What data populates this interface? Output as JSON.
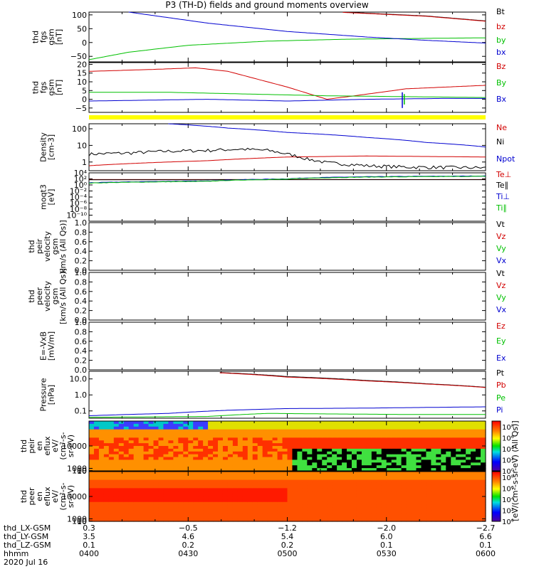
{
  "title": "P3 (TH-D) fields and ground moments overview",
  "colors": {
    "black": "#000000",
    "red": "#d20000",
    "green": "#00c000",
    "blue": "#0000d0",
    "yellow": "#ffff00"
  },
  "chart_data": [
    {
      "type": "line",
      "id": "fgs",
      "ylabel": [
        "thd",
        "fgs",
        "gsm",
        "[nT]"
      ],
      "ylim": [
        -70,
        110
      ],
      "yticks": [
        {
          "v": 100,
          "t": "100"
        },
        {
          "v": 50,
          "t": "50"
        },
        {
          "v": 0,
          "t": "0"
        },
        {
          "v": -50,
          "t": "−50"
        }
      ],
      "series": [
        {
          "name": "Bt",
          "color": "black",
          "x": [
            0.64,
            0.85,
            1.0
          ],
          "y": [
            110,
            96,
            78
          ]
        },
        {
          "name": "bz",
          "color": "red",
          "x": [
            0.64,
            0.85,
            1.0
          ],
          "y": [
            109,
            95,
            77
          ]
        },
        {
          "name": "by",
          "color": "green",
          "x": [
            0,
            0.1,
            0.25,
            0.45,
            0.65,
            0.85,
            1.0
          ],
          "y": [
            -62,
            -35,
            -10,
            5,
            12,
            15,
            17
          ]
        },
        {
          "name": "bx",
          "color": "blue",
          "x": [
            0.1,
            0.3,
            0.5,
            0.7,
            0.85,
            1.0
          ],
          "y": [
            110,
            70,
            40,
            20,
            8,
            -2
          ]
        }
      ]
    },
    {
      "type": "line",
      "id": "fgs_dsl",
      "ylabel": [
        "thd",
        "fgs",
        "gsm",
        "[nT]"
      ],
      "ylim": [
        -7.5,
        21
      ],
      "yticks": [
        {
          "v": 20,
          "t": "20"
        },
        {
          "v": 15,
          "t": "15"
        },
        {
          "v": 10,
          "t": "10"
        },
        {
          "v": 5,
          "t": "5"
        },
        {
          "v": 0,
          "t": "0"
        },
        {
          "v": -5,
          "t": "−5"
        }
      ],
      "series": [
        {
          "name": "Bz",
          "color": "red",
          "x": [
            0,
            0.15,
            0.27,
            0.35,
            0.5,
            0.6,
            0.67,
            0.8,
            1.0
          ],
          "y": [
            16,
            17,
            18,
            16,
            7,
            0,
            2,
            6,
            8
          ]
        },
        {
          "name": "By",
          "color": "green",
          "x": [
            0,
            0.2,
            0.4,
            0.6,
            0.8,
            1.0
          ],
          "y": [
            4,
            4,
            3,
            2,
            1.5,
            1
          ]
        },
        {
          "name": "Bx",
          "color": "blue",
          "x": [
            0,
            0.3,
            0.5,
            0.7,
            0.9,
            1.0
          ],
          "y": [
            -1,
            0,
            -1,
            0,
            0.5,
            0.5
          ]
        }
      ],
      "spikes": [
        {
          "x": 0.79,
          "y0": -5,
          "y1": 4,
          "color": "blue"
        },
        {
          "x": 0.795,
          "y0": -3,
          "y1": 3,
          "color": "green"
        }
      ],
      "flag_color": "yellow"
    },
    {
      "type": "line",
      "id": "density",
      "log": true,
      "ylabel": [
        "Density",
        "[cm-3]"
      ],
      "ylim": [
        0.3,
        200
      ],
      "yticks": [
        {
          "v": 100,
          "t": "100"
        },
        {
          "v": 10,
          "t": "10"
        },
        {
          "v": 1,
          "t": "1"
        }
      ],
      "series": [
        {
          "name": "Ne",
          "color": "red",
          "x": [
            0,
            0.15,
            0.3,
            0.5,
            0.7,
            1.0
          ],
          "y": [
            0.6,
            0.9,
            1.2,
            2.0,
            2.3,
            2.0
          ]
        },
        {
          "name": "Ni",
          "color": "black",
          "x": [
            0,
            0.1,
            0.2,
            0.3,
            0.38,
            0.45,
            0.5,
            0.55,
            0.6,
            0.7,
            0.8,
            1.0
          ],
          "y": [
            3,
            3.5,
            4.5,
            5,
            6,
            5,
            3,
            1.5,
            0.9,
            0.6,
            0.5,
            0.45
          ]
        },
        {
          "name": "Npot",
          "color": "blue",
          "x": [
            0.2,
            0.35,
            0.5,
            0.7,
            0.85,
            1.0
          ],
          "y": [
            200,
            110,
            60,
            30,
            15,
            8
          ]
        }
      ]
    },
    {
      "type": "line",
      "id": "moqt3",
      "log": true,
      "ylabel": [
        "moqt3",
        "[eV]"
      ],
      "ylim": [
        1e-12,
        10000.0
      ],
      "yticks": [
        {
          "v": 10000.0,
          "t": "10⁴"
        },
        {
          "v": 100.0,
          "t": "10²"
        },
        {
          "v": 1,
          "t": "10⁰"
        },
        {
          "v": 0.01,
          "t": "10⁻²"
        },
        {
          "v": 0.0001,
          "t": "10⁻⁴"
        },
        {
          "v": 1e-06,
          "t": "10⁻⁶"
        },
        {
          "v": 1e-08,
          "t": "10⁻⁸"
        },
        {
          "v": 1e-10,
          "t": "10⁻¹⁰"
        }
      ],
      "series": [
        {
          "name": "Te⊥",
          "color": "red",
          "x": [
            0,
            0.4,
            0.8,
            1.0
          ],
          "y": [
            60,
            60,
            60,
            60
          ]
        },
        {
          "name": "Te∥",
          "color": "black",
          "x": [
            0,
            0.4,
            0.8,
            1.0
          ],
          "y": [
            50,
            55,
            55,
            55
          ]
        },
        {
          "name": "Ti⊥",
          "color": "blue",
          "x": [
            0,
            0.3,
            0.5,
            0.7,
            1.0
          ],
          "y": [
            5,
            20,
            100,
            500,
            900
          ]
        },
        {
          "name": "Ti∥",
          "color": "green",
          "x": [
            0,
            0.3,
            0.5,
            0.7,
            1.0
          ],
          "y": [
            4,
            15,
            80,
            400,
            700
          ]
        }
      ]
    },
    {
      "type": "line",
      "id": "peir_vel",
      "ylabel": [
        "thd",
        "peir",
        "velocity",
        "gsm",
        "km/s (All Qs)]"
      ],
      "ylim": [
        0,
        1
      ],
      "yticks": [
        {
          "v": 1,
          "t": "1.0"
        },
        {
          "v": 0.8,
          "t": "0.8"
        },
        {
          "v": 0.6,
          "t": "0.6"
        },
        {
          "v": 0.4,
          "t": "0.4"
        },
        {
          "v": 0.2,
          "t": "0.2"
        },
        {
          "v": 0,
          "t": "0.0"
        }
      ],
      "series": [
        {
          "name": "Vt",
          "color": "black"
        },
        {
          "name": "Vz",
          "color": "red"
        },
        {
          "name": "Vy",
          "color": "green"
        },
        {
          "name": "Vx",
          "color": "blue"
        }
      ]
    },
    {
      "type": "line",
      "id": "peer_vel",
      "ylabel": [
        "thd",
        "peer",
        "velocity",
        "gsm",
        "[km/s (All Qs)]"
      ],
      "ylim": [
        0,
        1
      ],
      "yticks": [
        {
          "v": 1,
          "t": "1.0"
        },
        {
          "v": 0.8,
          "t": "0.8"
        },
        {
          "v": 0.6,
          "t": "0.6"
        },
        {
          "v": 0.4,
          "t": "0.4"
        },
        {
          "v": 0.2,
          "t": "0.2"
        },
        {
          "v": 0,
          "t": "0.0"
        }
      ],
      "series": [
        {
          "name": "Vt",
          "color": "black"
        },
        {
          "name": "Vz",
          "color": "red"
        },
        {
          "name": "Vy",
          "color": "green"
        },
        {
          "name": "Vx",
          "color": "blue"
        }
      ]
    },
    {
      "type": "line",
      "id": "efield",
      "ylabel": [
        "E=-VxB",
        "[mV/m]"
      ],
      "ylim": [
        0,
        1
      ],
      "yticks": [
        {
          "v": 1,
          "t": "1.0"
        },
        {
          "v": 0.8,
          "t": "0.8"
        },
        {
          "v": 0.6,
          "t": "0.6"
        },
        {
          "v": 0.4,
          "t": "0.4"
        },
        {
          "v": 0.2,
          "t": "0.2"
        },
        {
          "v": 0,
          "t": "0.0"
        }
      ],
      "series": [
        {
          "name": "Ez",
          "color": "red"
        },
        {
          "name": "Ey",
          "color": "green"
        },
        {
          "name": "Ex",
          "color": "blue"
        }
      ]
    },
    {
      "type": "line",
      "id": "pressure",
      "log": true,
      "ylabel": [
        "Pressure",
        "[nPa]"
      ],
      "ylim": [
        0.035,
        30
      ],
      "yticks": [
        {
          "v": 10,
          "t": "10.0"
        },
        {
          "v": 1,
          "t": "1.0"
        },
        {
          "v": 0.1,
          "t": "0.1"
        }
      ],
      "series": [
        {
          "name": "Pt",
          "color": "black",
          "x": [
            0.33,
            0.5,
            0.7,
            0.85,
            1.0
          ],
          "y": [
            25,
            14,
            8,
            5,
            3
          ]
        },
        {
          "name": "Pb",
          "color": "red",
          "x": [
            0.33,
            0.5,
            0.7,
            0.85,
            1.0
          ],
          "y": [
            24,
            13,
            7.5,
            4.8,
            2.9
          ]
        },
        {
          "name": "Pe",
          "color": "green",
          "x": [
            0,
            0.3,
            0.45,
            0.6,
            0.8,
            1.0
          ],
          "y": [
            0.04,
            0.045,
            0.07,
            0.065,
            0.06,
            0.06
          ]
        },
        {
          "name": "Pi",
          "color": "blue",
          "x": [
            0,
            0.2,
            0.35,
            0.5,
            0.7,
            0.9,
            1.0
          ],
          "y": [
            0.05,
            0.07,
            0.11,
            0.14,
            0.15,
            0.17,
            0.18
          ]
        }
      ]
    },
    {
      "type": "heatmap",
      "id": "peir_spec",
      "ylabel": [
        "thd",
        "peir",
        "en",
        "eflux",
        "eV/",
        "(cm²-s-",
        "sr-eV)"
      ],
      "ylim": [
        5,
        20000
      ],
      "yticks": [
        {
          "v": 10000,
          "t": "10000"
        },
        {
          "v": 1000,
          "t": "1000"
        },
        {
          "v": 100,
          "t": "100"
        },
        {
          "v": 10,
          "t": "10"
        }
      ]
    },
    {
      "type": "heatmap",
      "id": "peer_spec",
      "ylabel": [
        "thd",
        "peer",
        "en",
        "eflux",
        "eV/",
        "(cm²-s-",
        "sr-eV)"
      ],
      "ylim": [
        5,
        20000
      ],
      "yticks": [
        {
          "v": 10000,
          "t": "10000"
        },
        {
          "v": 1000,
          "t": "1000"
        },
        {
          "v": 100,
          "t": "100"
        },
        {
          "v": 10,
          "t": "10"
        }
      ]
    }
  ],
  "colorbar": {
    "ticks": [
      {
        "v": 8,
        "t": "10⁸"
      },
      {
        "v": 6,
        "t": "10⁶"
      },
      {
        "v": 4,
        "t": "10⁴"
      },
      {
        "v": 2,
        "t": "10²"
      },
      {
        "v": 0,
        "t": "10⁰"
      }
    ],
    "label": "[eV/(cm²-s-sr-eV) (All Qs)]"
  },
  "x_axis": {
    "rows": [
      {
        "label": "thd_LX-GSM",
        "values": [
          "0.3",
          "−0.5",
          "−1.2",
          "−2.0",
          "−2.7"
        ]
      },
      {
        "label": "thd_LY-GSM",
        "values": [
          "3.5",
          "4.6",
          "5.4",
          "6.0",
          "6.6"
        ]
      },
      {
        "label": "thd_LZ-GSM",
        "values": [
          "0.1",
          "0.2",
          "0.2",
          "0.1",
          "0.1"
        ]
      },
      {
        "label": "hhmm",
        "values": [
          "0400",
          "0430",
          "0500",
          "0530",
          "0600"
        ]
      }
    ],
    "date": "2020 Jul 16"
  }
}
